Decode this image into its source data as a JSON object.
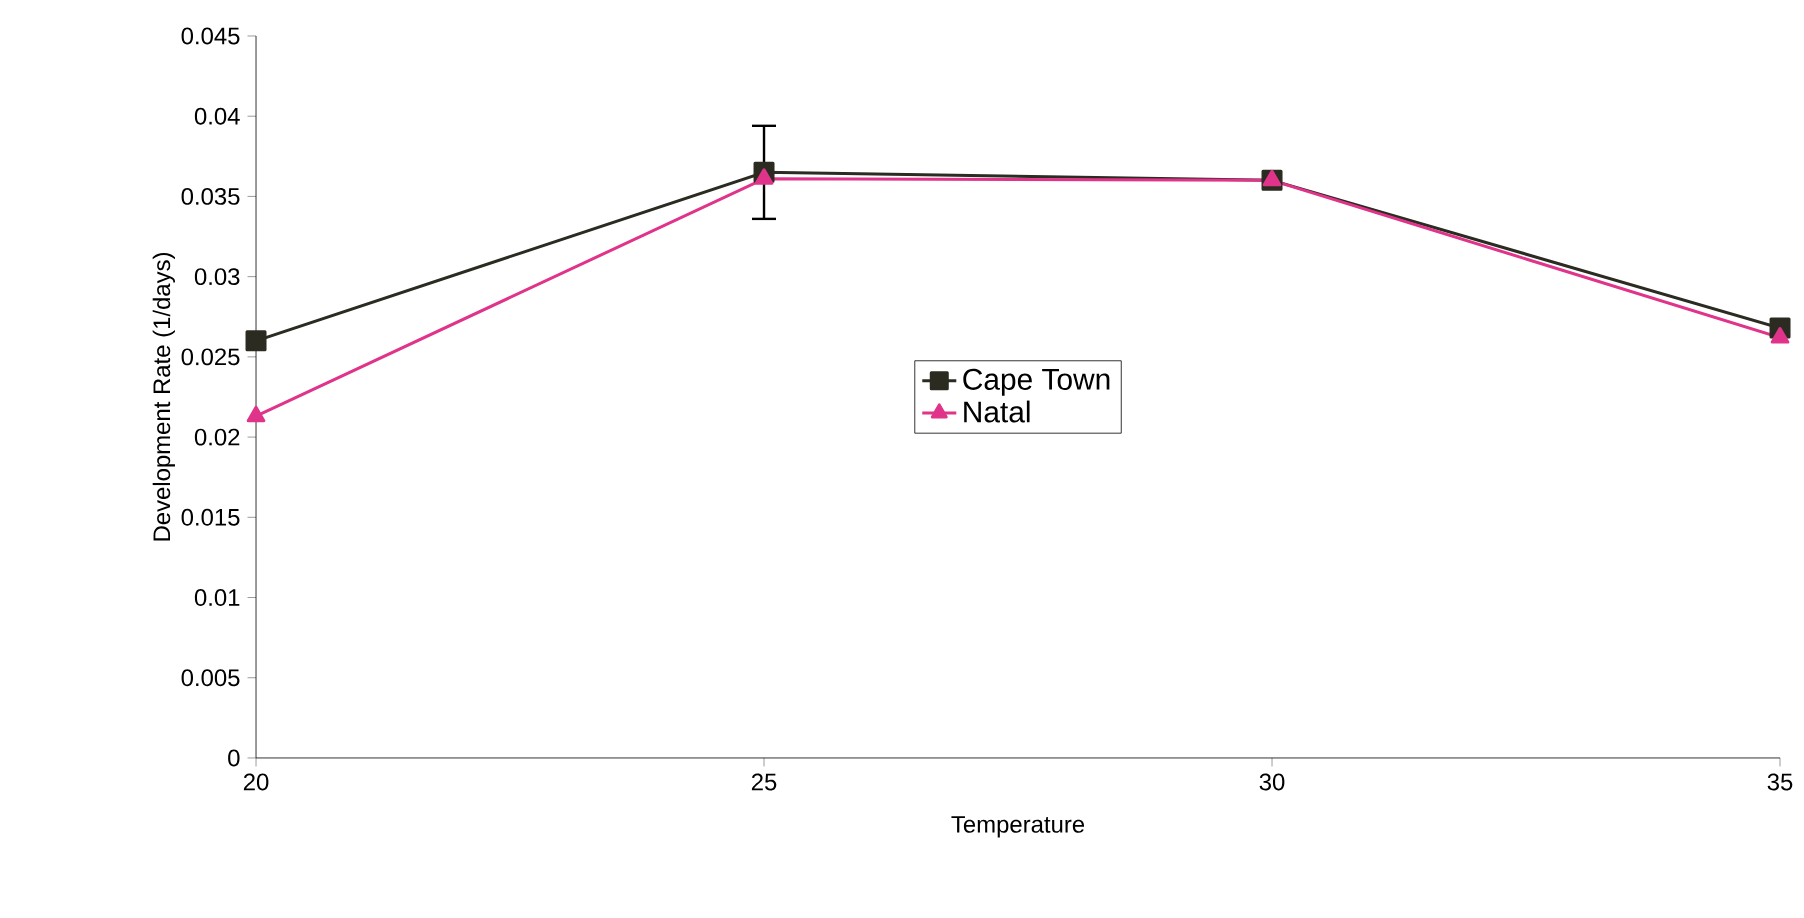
{
  "chart_data": {
    "type": "line",
    "xlabel": "Temperature",
    "ylabel": "Development Rate (1/days)",
    "x": [
      20,
      25,
      30,
      35
    ],
    "xlim": [
      20,
      35
    ],
    "xticks": [
      20,
      25,
      30,
      35
    ],
    "ylim": [
      0,
      0.045
    ],
    "yticks": [
      0,
      0.005,
      0.01,
      0.015,
      0.02,
      0.025,
      0.03,
      0.035,
      0.04,
      0.045
    ],
    "series": [
      {
        "name": "Cape Town",
        "color": "#2b2b22",
        "values": [
          0.026,
          0.0365,
          0.036,
          0.0268
        ],
        "errors": [
          null,
          0.0029,
          null,
          null
        ],
        "marker": "square"
      },
      {
        "name": "Natal",
        "color": "#e0338a",
        "values": [
          0.0213,
          0.0361,
          0.036,
          0.0262
        ],
        "marker": "triangle"
      }
    ],
    "legend": "center",
    "grid": false,
    "line_style": "solid"
  }
}
